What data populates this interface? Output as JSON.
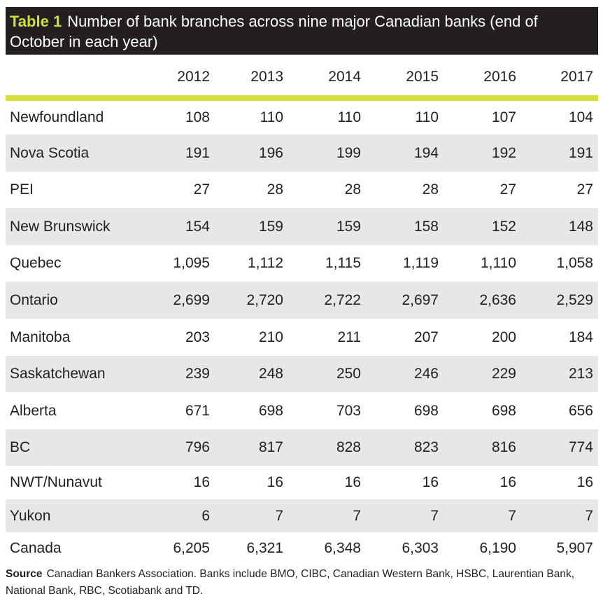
{
  "header": {
    "label": "Table 1",
    "title": "Number of bank branches across nine major Canadian banks (end of October in each year)"
  },
  "table": {
    "columns": [
      "2012",
      "2013",
      "2014",
      "2015",
      "2016",
      "2017"
    ],
    "rows": [
      [
        "Newfoundland",
        "108",
        "110",
        "110",
        "110",
        "107",
        "104"
      ],
      [
        "Nova Scotia",
        "191",
        "196",
        "199",
        "194",
        "192",
        "191"
      ],
      [
        "PEI",
        "27",
        "28",
        "28",
        "28",
        "27",
        "27"
      ],
      [
        "New Brunswick",
        "154",
        "159",
        "159",
        "158",
        "152",
        "148"
      ],
      [
        "Quebec",
        "1,095",
        "1,112",
        "1,115",
        "1,119",
        "1,110",
        "1,058"
      ],
      [
        "Ontario",
        "2,699",
        "2,720",
        "2,722",
        "2,697",
        "2,636",
        "2,529"
      ],
      [
        "Manitoba",
        "203",
        "210",
        "211",
        "207",
        "200",
        "184"
      ],
      [
        "Saskatchewan",
        "239",
        "248",
        "250",
        "246",
        "229",
        "213"
      ],
      [
        "Alberta",
        "671",
        "698",
        "703",
        "698",
        "698",
        "656"
      ],
      [
        "BC",
        "796",
        "817",
        "828",
        "823",
        "816",
        "774"
      ],
      [
        "NWT/Nunavut",
        "16",
        "16",
        "16",
        "16",
        "16",
        "16"
      ],
      [
        "Yukon",
        "6",
        "7",
        "7",
        "7",
        "7",
        "7"
      ],
      [
        "Canada",
        "6,205",
        "6,321",
        "6,348",
        "6,303",
        "6,190",
        "5,907"
      ]
    ]
  },
  "source": {
    "label": "Source",
    "text": "Canadian Bankers Association. Banks include BMO, CIBC, Canadian Western Bank, HSBC, Laurentian Bank, National Bank, RBC, Scotiabank and TD."
  }
}
